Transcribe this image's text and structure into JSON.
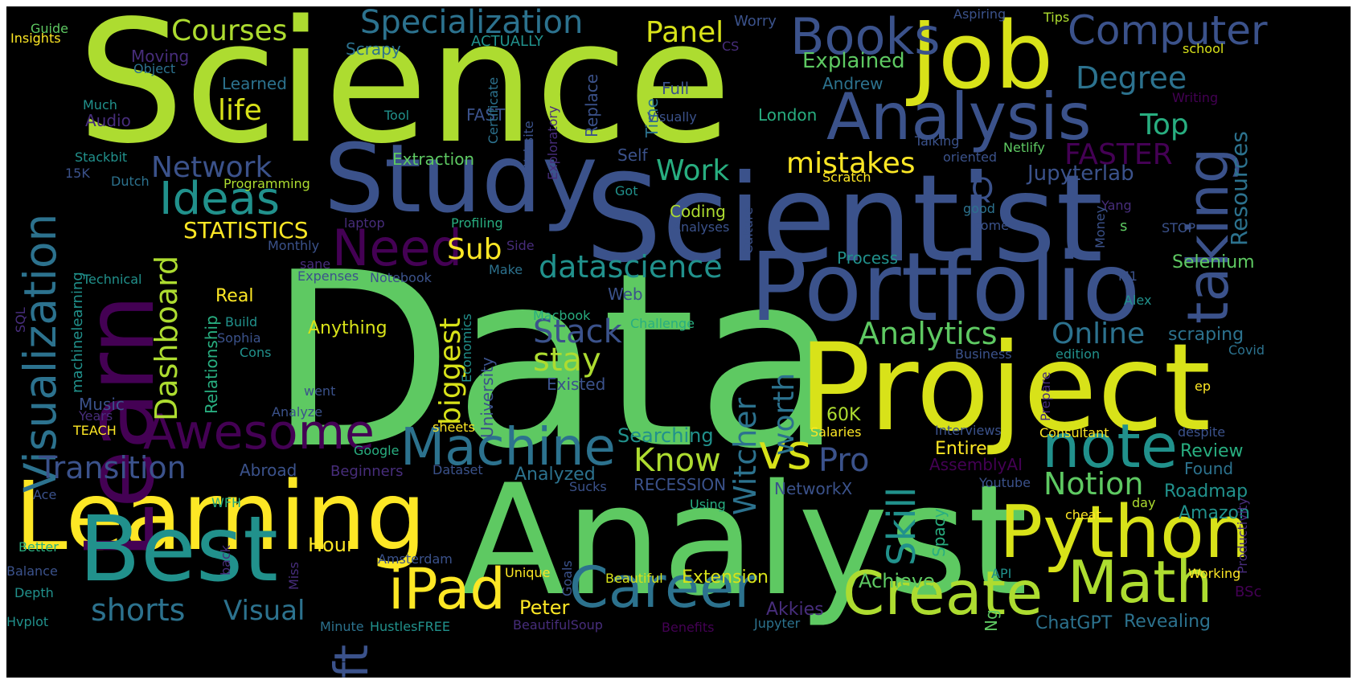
{
  "colors": {
    "background": "#000000",
    "frame": "#ffffff",
    "palette": [
      "#440154",
      "#472d7b",
      "#3b528b",
      "#2c728e",
      "#21918c",
      "#28ae80",
      "#5ec962",
      "#addc30",
      "#fde725"
    ]
  },
  "words": [
    {
      "text": "Data",
      "color": "#5ec962"
    },
    {
      "text": "Science",
      "color": "#addc30"
    },
    {
      "text": "Analyst",
      "color": "#5ec962"
    },
    {
      "text": "Scientist",
      "color": "#3b528b"
    },
    {
      "text": "Project",
      "color": "#d8e219"
    },
    {
      "text": "Learning",
      "color": "#fde725"
    },
    {
      "text": "Portfolio",
      "color": "#3b528b"
    },
    {
      "text": "Study",
      "color": "#3b528b"
    },
    {
      "text": "Learn",
      "color": "#440154"
    },
    {
      "text": "Job",
      "color": "#d8e219"
    },
    {
      "text": "Best",
      "color": "#21918c"
    },
    {
      "text": "Python",
      "color": "#d8e219"
    },
    {
      "text": "Analysis",
      "color": "#3b528b"
    },
    {
      "text": "Create",
      "color": "#addc30"
    },
    {
      "text": "Career",
      "color": "#2c728e"
    },
    {
      "text": "Math",
      "color": "#addc30"
    },
    {
      "text": "iPad",
      "color": "#fde725"
    },
    {
      "text": "note",
      "color": "#21918c"
    },
    {
      "text": "Machine",
      "color": "#2c728e"
    },
    {
      "text": "Awesome",
      "color": "#440154"
    },
    {
      "text": "Visualization",
      "color": "#2c728e"
    },
    {
      "text": "taking",
      "color": "#3b528b"
    },
    {
      "text": "Books",
      "color": "#3b528b"
    },
    {
      "text": "Computer",
      "color": "#3b528b"
    },
    {
      "text": "Need",
      "color": "#440154"
    },
    {
      "text": "Ideas",
      "color": "#21918c"
    },
    {
      "text": "vs",
      "color": "#d8e219"
    },
    {
      "text": "ft",
      "color": "#3b528b"
    },
    {
      "text": "Skill",
      "color": "#21918c"
    },
    {
      "text": "Specialization",
      "color": "#2c728e"
    },
    {
      "text": "Transition",
      "color": "#3b528b"
    },
    {
      "text": "datascience",
      "color": "#21918c"
    },
    {
      "text": "Notion",
      "color": "#5ec962"
    },
    {
      "text": "Pro",
      "color": "#3b528b"
    },
    {
      "text": "Online",
      "color": "#2c728e"
    },
    {
      "text": "Stack",
      "color": "#3b528b"
    },
    {
      "text": "Analytics",
      "color": "#5ec962"
    },
    {
      "text": "Witcher",
      "color": "#2c728e"
    },
    {
      "text": "worth",
      "color": "#2c728e"
    },
    {
      "text": "Dashboard",
      "color": "#addc30"
    },
    {
      "text": "Know",
      "color": "#addc30"
    },
    {
      "text": "stay",
      "color": "#addc30"
    },
    {
      "text": "shorts",
      "color": "#2c728e"
    },
    {
      "text": "Degree",
      "color": "#2c728e"
    },
    {
      "text": "Courses",
      "color": "#addc30"
    },
    {
      "text": "Network",
      "color": "#3b528b"
    },
    {
      "text": "mistakes",
      "color": "#fde725"
    },
    {
      "text": "FASTER",
      "color": "#440154"
    },
    {
      "text": "Top",
      "color": "#28ae80"
    },
    {
      "text": "Panel",
      "color": "#d8e219"
    },
    {
      "text": "Work",
      "color": "#28ae80"
    },
    {
      "text": "life",
      "color": "#d8e219"
    },
    {
      "text": "biggest",
      "color": "#d8e219"
    },
    {
      "text": "Visual",
      "color": "#2c728e"
    },
    {
      "text": "Sub",
      "color": "#fde725"
    },
    {
      "text": "Resources",
      "color": "#2c728e"
    },
    {
      "text": "Explained",
      "color": "#5ec962"
    },
    {
      "text": "STATISTICS",
      "color": "#fde725"
    },
    {
      "text": "Q",
      "color": "#3b528b"
    },
    {
      "text": "Jupyterlab",
      "color": "#3b528b"
    },
    {
      "text": "Searching",
      "color": "#21918c"
    },
    {
      "text": "Roadmap",
      "color": "#21918c"
    },
    {
      "text": "Review",
      "color": "#28ae80"
    },
    {
      "text": "Achieve",
      "color": "#5ec962"
    },
    {
      "text": "Peter",
      "color": "#fde725"
    },
    {
      "text": "Hour",
      "color": "#fde725"
    },
    {
      "text": "Extension",
      "color": "#d8e219"
    },
    {
      "text": "Entire",
      "color": "#fde725"
    },
    {
      "text": "Amazon",
      "color": "#21918c"
    },
    {
      "text": "Found",
      "color": "#2c728e"
    },
    {
      "text": "Revealing",
      "color": "#2c728e"
    },
    {
      "text": "ChatGPT",
      "color": "#2c728e"
    },
    {
      "text": "Akkies",
      "color": "#472d7b"
    },
    {
      "text": "Spacy",
      "color": "#28ae80"
    },
    {
      "text": "Ng",
      "color": "#5ec962"
    },
    {
      "text": "Selenium",
      "color": "#5ec962"
    },
    {
      "text": "scraping",
      "color": "#2c728e"
    },
    {
      "text": "Analyzed",
      "color": "#2c728e"
    },
    {
      "text": "Abroad",
      "color": "#3b528b"
    },
    {
      "text": "Beginners",
      "color": "#472d7b"
    },
    {
      "text": "Music",
      "color": "#3b528b"
    },
    {
      "text": "Process",
      "color": "#21918c"
    },
    {
      "text": "Anything",
      "color": "#d8e219"
    },
    {
      "text": "RECESSION",
      "color": "#3b528b"
    },
    {
      "text": "NetworkX",
      "color": "#3b528b"
    },
    {
      "text": "AssemblyAI",
      "color": "#440154"
    },
    {
      "text": "Extraction",
      "color": "#5ec962"
    },
    {
      "text": "Scrapy",
      "color": "#2c728e"
    },
    {
      "text": "Andrew",
      "color": "#2c728e"
    },
    {
      "text": "London",
      "color": "#28ae80"
    },
    {
      "text": "Full",
      "color": "#3b528b"
    },
    {
      "text": "Self",
      "color": "#3b528b"
    },
    {
      "text": "Coding",
      "color": "#addc30"
    },
    {
      "text": "Real",
      "color": "#fde725"
    },
    {
      "text": "Relationship",
      "color": "#28ae80"
    },
    {
      "text": "Economics",
      "color": "#21918c"
    },
    {
      "text": "University",
      "color": "#3b528b"
    },
    {
      "text": "machinelearning",
      "color": "#21918c"
    },
    {
      "text": "Web",
      "color": "#3b528b"
    },
    {
      "text": "Existed",
      "color": "#3b528b"
    },
    {
      "text": "60K",
      "color": "#addc30"
    },
    {
      "text": "Moving",
      "color": "#472d7b"
    },
    {
      "text": "Learned",
      "color": "#2c728e"
    },
    {
      "text": "Audio",
      "color": "#472d7b"
    },
    {
      "text": "ACTUALLY",
      "color": "#21918c"
    },
    {
      "text": "FAST",
      "color": "#3b528b"
    },
    {
      "text": "Replace",
      "color": "#3b528b"
    },
    {
      "text": "Time",
      "color": "#2c728e"
    },
    {
      "text": "Worry",
      "color": "#3b528b"
    },
    {
      "text": "Certificate",
      "color": "#2c728e"
    },
    {
      "text": "Website",
      "color": "#3b528b"
    },
    {
      "text": "Exploratory",
      "color": "#472d7b"
    },
    {
      "text": "Programming",
      "color": "#addc30"
    },
    {
      "text": "Profiling",
      "color": "#28ae80"
    },
    {
      "text": "Got",
      "color": "#21918c"
    },
    {
      "text": "Analyses",
      "color": "#3b528b"
    },
    {
      "text": "Culture",
      "color": "#3b528b"
    },
    {
      "text": "Make",
      "color": "#2c728e"
    },
    {
      "text": "Side",
      "color": "#472d7b"
    },
    {
      "text": "Notebook",
      "color": "#3b528b"
    },
    {
      "text": "Expenses",
      "color": "#3b528b"
    },
    {
      "text": "Monthly",
      "color": "#3b528b"
    },
    {
      "text": "laptop",
      "color": "#472d7b"
    },
    {
      "text": "sane",
      "color": "#472d7b"
    },
    {
      "text": "Technical",
      "color": "#21918c"
    },
    {
      "text": "Build",
      "color": "#21918c"
    },
    {
      "text": "Sophia",
      "color": "#3b528b"
    },
    {
      "text": "Cons",
      "color": "#21918c"
    },
    {
      "text": "Macbook",
      "color": "#28ae80"
    },
    {
      "text": "Challenge",
      "color": "#28ae80"
    },
    {
      "text": "Analyze",
      "color": "#3b528b"
    },
    {
      "text": "went",
      "color": "#3b528b"
    },
    {
      "text": "sheets",
      "color": "#fde725"
    },
    {
      "text": "Years",
      "color": "#472d7b"
    },
    {
      "text": "TEACH",
      "color": "#fde725"
    },
    {
      "text": "Google",
      "color": "#28ae80"
    },
    {
      "text": "Dataset",
      "color": "#3b528b"
    },
    {
      "text": "Sucks",
      "color": "#3b528b"
    },
    {
      "text": "Using",
      "color": "#28ae80"
    },
    {
      "text": "Goals",
      "color": "#3b528b"
    },
    {
      "text": "Amsterdam",
      "color": "#3b528b"
    },
    {
      "text": "Miss",
      "color": "#472d7b"
    },
    {
      "text": "Unique",
      "color": "#fde725"
    },
    {
      "text": "Beautiful",
      "color": "#d8e219"
    },
    {
      "text": "BeautifulSoup",
      "color": "#472d7b"
    },
    {
      "text": "HustlesFREE",
      "color": "#21918c"
    },
    {
      "text": "Minute",
      "color": "#2c728e"
    },
    {
      "text": "Benefits",
      "color": "#440154"
    },
    {
      "text": "Jupyter",
      "color": "#2c728e"
    },
    {
      "text": "API",
      "color": "#21918c"
    },
    {
      "text": "Youtube",
      "color": "#3b528b"
    },
    {
      "text": "Salaries",
      "color": "#fde725"
    },
    {
      "text": "Interviews",
      "color": "#3b528b"
    },
    {
      "text": "Consultant",
      "color": "#fde725"
    },
    {
      "text": "despite",
      "color": "#3b528b"
    },
    {
      "text": "Prepare",
      "color": "#472d7b"
    },
    {
      "text": "Business",
      "color": "#3b528b"
    },
    {
      "text": "edition",
      "color": "#21918c"
    },
    {
      "text": "Covid",
      "color": "#2c728e"
    },
    {
      "text": "ep",
      "color": "#fde725"
    },
    {
      "text": "Productivity",
      "color": "#472d7b"
    },
    {
      "text": "cheat",
      "color": "#fde725"
    },
    {
      "text": "day",
      "color": "#addc30"
    },
    {
      "text": "Working",
      "color": "#fde725"
    },
    {
      "text": "BSc",
      "color": "#440154"
    },
    {
      "text": "Alex",
      "color": "#21918c"
    },
    {
      "text": "M1",
      "color": "#3b528b"
    },
    {
      "text": "STOP",
      "color": "#3b528b"
    },
    {
      "text": "s",
      "color": "#5ec962"
    },
    {
      "text": "Yang",
      "color": "#472d7b"
    },
    {
      "text": "Money",
      "color": "#3b528b"
    },
    {
      "text": "good",
      "color": "#2c728e"
    },
    {
      "text": "come",
      "color": "#3b528b"
    },
    {
      "text": "Netlify",
      "color": "#5ec962"
    },
    {
      "text": "Scratch",
      "color": "#fde725"
    },
    {
      "text": "oriented",
      "color": "#3b528b"
    },
    {
      "text": "Talking",
      "color": "#3b528b"
    },
    {
      "text": "Writing",
      "color": "#440154"
    },
    {
      "text": "school",
      "color": "#d8e219"
    },
    {
      "text": "Tips",
      "color": "#addc30"
    },
    {
      "text": "Aspiring",
      "color": "#3b528b"
    },
    {
      "text": "CS",
      "color": "#472d7b"
    },
    {
      "text": "Visually",
      "color": "#3b528b"
    },
    {
      "text": "Tool",
      "color": "#21918c"
    },
    {
      "text": "Much",
      "color": "#21918c"
    },
    {
      "text": "Object",
      "color": "#2c728e"
    },
    {
      "text": "Guide",
      "color": "#5ec962"
    },
    {
      "text": "Insights",
      "color": "#fde725"
    },
    {
      "text": "Stackbit",
      "color": "#21918c"
    },
    {
      "text": "15K",
      "color": "#3b528b"
    },
    {
      "text": "Dutch",
      "color": "#2c728e"
    },
    {
      "text": "SQL",
      "color": "#472d7b"
    },
    {
      "text": "Ace",
      "color": "#3b528b"
    },
    {
      "text": "Better",
      "color": "#28ae80"
    },
    {
      "text": "Balance",
      "color": "#3b528b"
    },
    {
      "text": "Depth",
      "color": "#21918c"
    },
    {
      "text": "Hvplot",
      "color": "#21918c"
    },
    {
      "text": "WFH",
      "color": "#28ae80"
    },
    {
      "text": "back",
      "color": "#472d7b"
    }
  ]
}
